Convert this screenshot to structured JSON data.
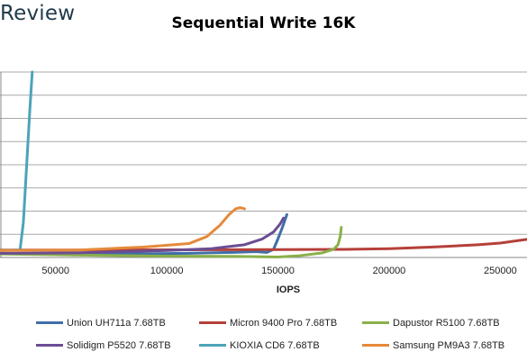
{
  "brand": "Review",
  "chart_data": {
    "type": "line",
    "title": "Sequential Write 16K",
    "xlabel": "IOPS",
    "ylabel": "",
    "xlim": [
      25000,
      262000
    ],
    "ylim": [
      0,
      8
    ],
    "xticks": [
      50000,
      100000,
      150000,
      200000,
      250000
    ],
    "grid": "horizontal",
    "legend_position": "bottom",
    "series": [
      {
        "name": "Union UH711a 7.68TB",
        "color": "#3f6fa8",
        "points": [
          [
            25000,
            0.18
          ],
          [
            50000,
            0.15
          ],
          [
            80000,
            0.15
          ],
          [
            110000,
            0.18
          ],
          [
            130000,
            0.22
          ],
          [
            140000,
            0.25
          ],
          [
            145000,
            0.22
          ],
          [
            148000,
            0.35
          ],
          [
            150000,
            0.8
          ],
          [
            152000,
            1.3
          ],
          [
            154000,
            1.85
          ]
        ]
      },
      {
        "name": "Micron 9400 Pro 7.68TB",
        "color": "#b5403a",
        "points": [
          [
            25000,
            0.32
          ],
          [
            60000,
            0.32
          ],
          [
            100000,
            0.33
          ],
          [
            150000,
            0.34
          ],
          [
            180000,
            0.35
          ],
          [
            200000,
            0.38
          ],
          [
            220000,
            0.45
          ],
          [
            240000,
            0.55
          ],
          [
            250000,
            0.62
          ],
          [
            262000,
            0.78
          ]
        ]
      },
      {
        "name": "Dapustor R5100 7.68TB",
        "color": "#8ab04a",
        "points": [
          [
            25000,
            0.15
          ],
          [
            60000,
            0.1
          ],
          [
            100000,
            0.06
          ],
          [
            130000,
            0.05
          ],
          [
            150000,
            0.02
          ],
          [
            160000,
            0.08
          ],
          [
            170000,
            0.2
          ],
          [
            175000,
            0.35
          ],
          [
            177000,
            0.55
          ],
          [
            178000,
            0.9
          ],
          [
            178500,
            1.3
          ]
        ]
      },
      {
        "name": "Solidigm P5520 7.68TB",
        "color": "#6b4d93",
        "points": [
          [
            25000,
            0.18
          ],
          [
            60000,
            0.2
          ],
          [
            100000,
            0.3
          ],
          [
            120000,
            0.38
          ],
          [
            135000,
            0.55
          ],
          [
            143000,
            0.8
          ],
          [
            148000,
            1.1
          ],
          [
            151000,
            1.45
          ],
          [
            152500,
            1.7
          ]
        ]
      },
      {
        "name": "KIOXIA CD6 7.68TB",
        "color": "#4da3b9",
        "points": [
          [
            25000,
            0.3
          ],
          [
            34000,
            0.32
          ],
          [
            35500,
            1.5
          ],
          [
            37000,
            4.0
          ],
          [
            38500,
            6.5
          ],
          [
            39500,
            8.0
          ]
        ]
      },
      {
        "name": "Samsung PM9A3 7.68TB",
        "color": "#e58a3a",
        "points": [
          [
            25000,
            0.3
          ],
          [
            60000,
            0.32
          ],
          [
            90000,
            0.45
          ],
          [
            110000,
            0.6
          ],
          [
            118000,
            0.9
          ],
          [
            124000,
            1.4
          ],
          [
            128000,
            1.85
          ],
          [
            131000,
            2.1
          ],
          [
            133000,
            2.15
          ],
          [
            135000,
            2.1
          ]
        ]
      }
    ]
  }
}
